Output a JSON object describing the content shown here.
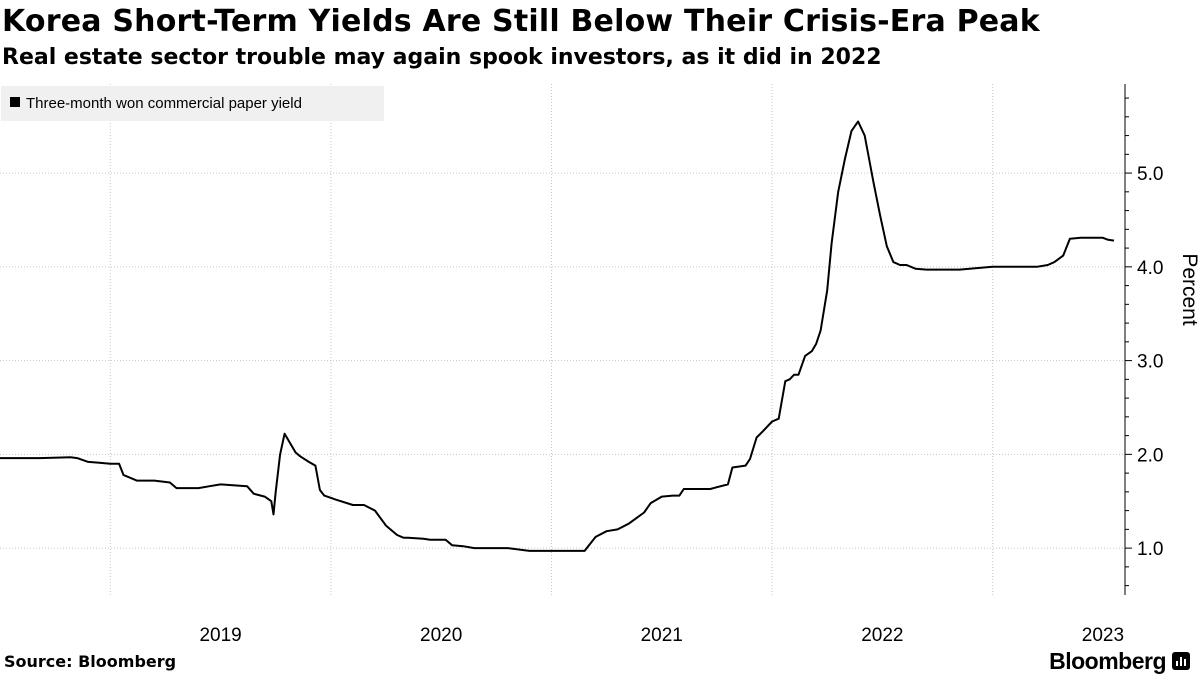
{
  "header": {
    "title": "Korea Short-Term Yields Are Still Below Their Crisis-Era Peak",
    "subtitle": "Real estate sector trouble may again spook investors, as it did in 2022"
  },
  "footer": {
    "source": "Source: Bloomberg",
    "brand": "Bloomberg"
  },
  "colors": {
    "line": "#000000",
    "grid": "#c8c8c8",
    "legend_bg": "#f0f0f0"
  },
  "chart_data": {
    "type": "line",
    "title": "Korea Short-Term Yields Are Still Below Their Crisis-Era Peak",
    "subtitle": "Real estate sector trouble may again spook investors, as it did in 2022",
    "xlabel": "",
    "ylabel": "Percent",
    "xlim": [
      2018.5,
      2023.6
    ],
    "ylim": [
      0.5,
      5.95
    ],
    "yticks": [
      1.0,
      2.0,
      3.0,
      4.0,
      5.0
    ],
    "ytick_labels": [
      "1.0",
      "2.0",
      "3.0",
      "4.0",
      "5.0"
    ],
    "xticks": [
      2019,
      2020,
      2021,
      2022,
      2023
    ],
    "xtick_labels": [
      "2019",
      "2020",
      "2021",
      "2022",
      "2023"
    ],
    "grid": true,
    "legend": "top-left",
    "series": [
      {
        "name": "Three-month won commercial paper yield",
        "x": [
          2018.5,
          2018.68,
          2018.82,
          2018.85,
          2018.9,
          2018.95,
          2019.0,
          2019.04,
          2019.06,
          2019.12,
          2019.2,
          2019.27,
          2019.3,
          2019.4,
          2019.45,
          2019.5,
          2019.62,
          2019.65,
          2019.7,
          2019.73,
          2019.74,
          2019.75,
          2019.77,
          2019.79,
          2019.8,
          2019.82,
          2019.84,
          2019.86,
          2019.9,
          2019.93,
          2019.95,
          2019.97,
          2020.02,
          2020.1,
          2020.15,
          2020.2,
          2020.25,
          2020.3,
          2020.33,
          2020.35,
          2020.42,
          2020.45,
          2020.52,
          2020.55,
          2020.6,
          2020.65,
          2020.7,
          2020.8,
          2020.9,
          2021.0,
          2021.05,
          2021.1,
          2021.15,
          2021.2,
          2021.25,
          2021.3,
          2021.35,
          2021.42,
          2021.45,
          2021.5,
          2021.55,
          2021.58,
          2021.6,
          2021.65,
          2021.7,
          2021.72,
          2021.75,
          2021.8,
          2021.82,
          2021.88,
          2021.9,
          2021.93,
          2021.96,
          2022.0,
          2022.03,
          2022.06,
          2022.08,
          2022.1,
          2022.12,
          2022.15,
          2022.18,
          2022.2,
          2022.22,
          2022.25,
          2022.27,
          2022.3,
          2022.33,
          2022.36,
          2022.39,
          2022.42,
          2022.44,
          2022.46,
          2022.49,
          2022.52,
          2022.55,
          2022.58,
          2022.61,
          2022.65,
          2022.7,
          2022.75,
          2022.85,
          2023.0,
          2023.1,
          2023.2,
          2023.25,
          2023.28,
          2023.32,
          2023.35,
          2023.4,
          2023.45,
          2023.5,
          2023.52,
          2023.55
        ],
        "values": [
          1.96,
          1.96,
          1.97,
          1.96,
          1.92,
          1.91,
          1.9,
          1.9,
          1.78,
          1.72,
          1.72,
          1.7,
          1.64,
          1.64,
          1.66,
          1.68,
          1.66,
          1.58,
          1.55,
          1.5,
          1.36,
          1.6,
          2.0,
          2.22,
          2.18,
          2.1,
          2.02,
          1.98,
          1.92,
          1.88,
          1.62,
          1.56,
          1.52,
          1.46,
          1.46,
          1.4,
          1.24,
          1.14,
          1.11,
          1.11,
          1.1,
          1.09,
          1.09,
          1.03,
          1.02,
          1.0,
          1.0,
          1.0,
          0.97,
          0.97,
          0.97,
          0.97,
          0.97,
          1.12,
          1.18,
          1.2,
          1.26,
          1.38,
          1.48,
          1.55,
          1.56,
          1.56,
          1.63,
          1.63,
          1.63,
          1.63,
          1.65,
          1.68,
          1.86,
          1.88,
          1.95,
          2.18,
          2.25,
          2.35,
          2.38,
          2.78,
          2.8,
          2.85,
          2.85,
          3.05,
          3.1,
          3.18,
          3.32,
          3.75,
          4.25,
          4.8,
          5.15,
          5.45,
          5.55,
          5.4,
          5.15,
          4.9,
          4.55,
          4.22,
          4.05,
          4.02,
          4.02,
          3.98,
          3.97,
          3.97,
          3.97,
          4.0,
          4.0,
          4.0,
          4.02,
          4.05,
          4.12,
          4.3,
          4.31,
          4.31,
          4.31,
          4.29,
          4.28
        ]
      }
    ]
  }
}
